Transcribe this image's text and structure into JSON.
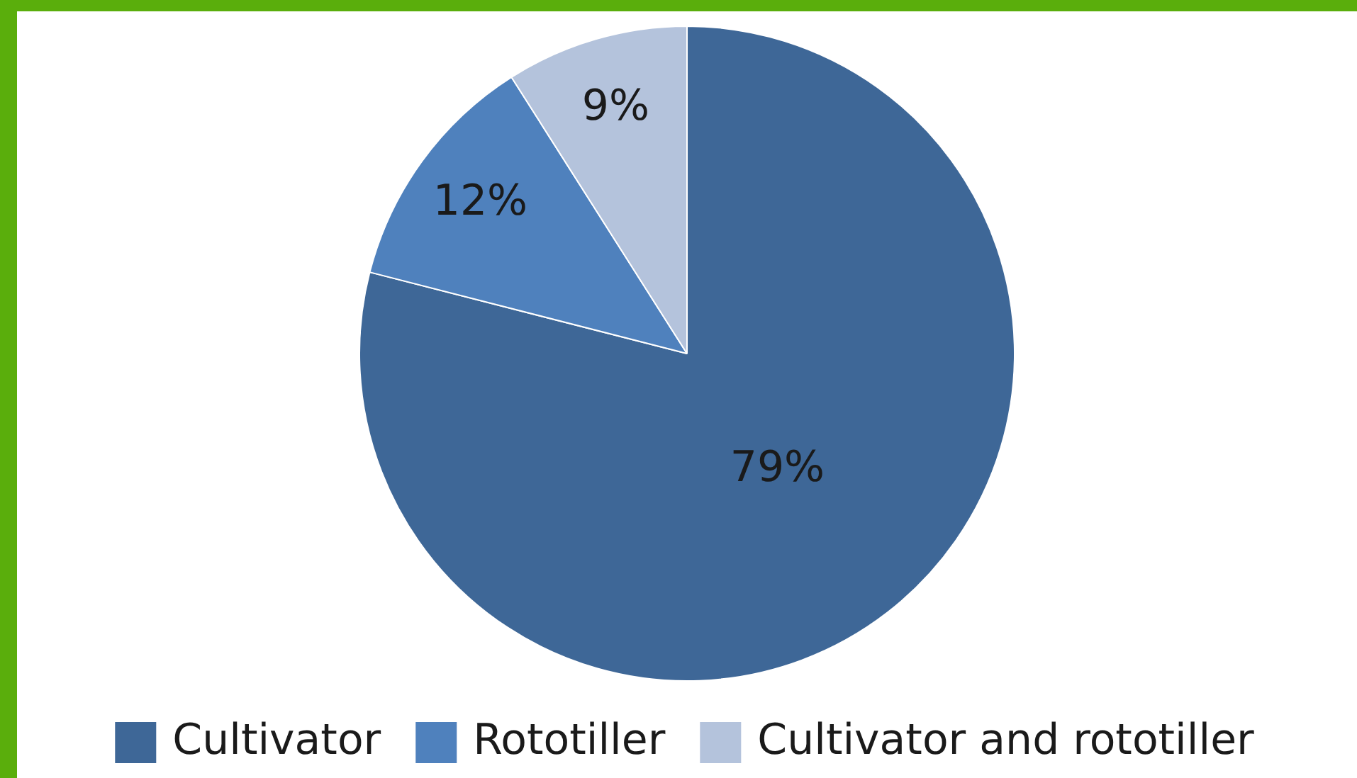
{
  "chart_data": {
    "type": "pie",
    "categories": [
      "Cultivator",
      "Rototiller",
      "Cultivator and rototiller"
    ],
    "values": [
      79,
      12,
      9
    ],
    "colors": [
      "#3e6797",
      "#4f81bd",
      "#b4c3dc"
    ],
    "value_labels": [
      "79%",
      "12%",
      "9%"
    ],
    "legend": "bottom"
  }
}
